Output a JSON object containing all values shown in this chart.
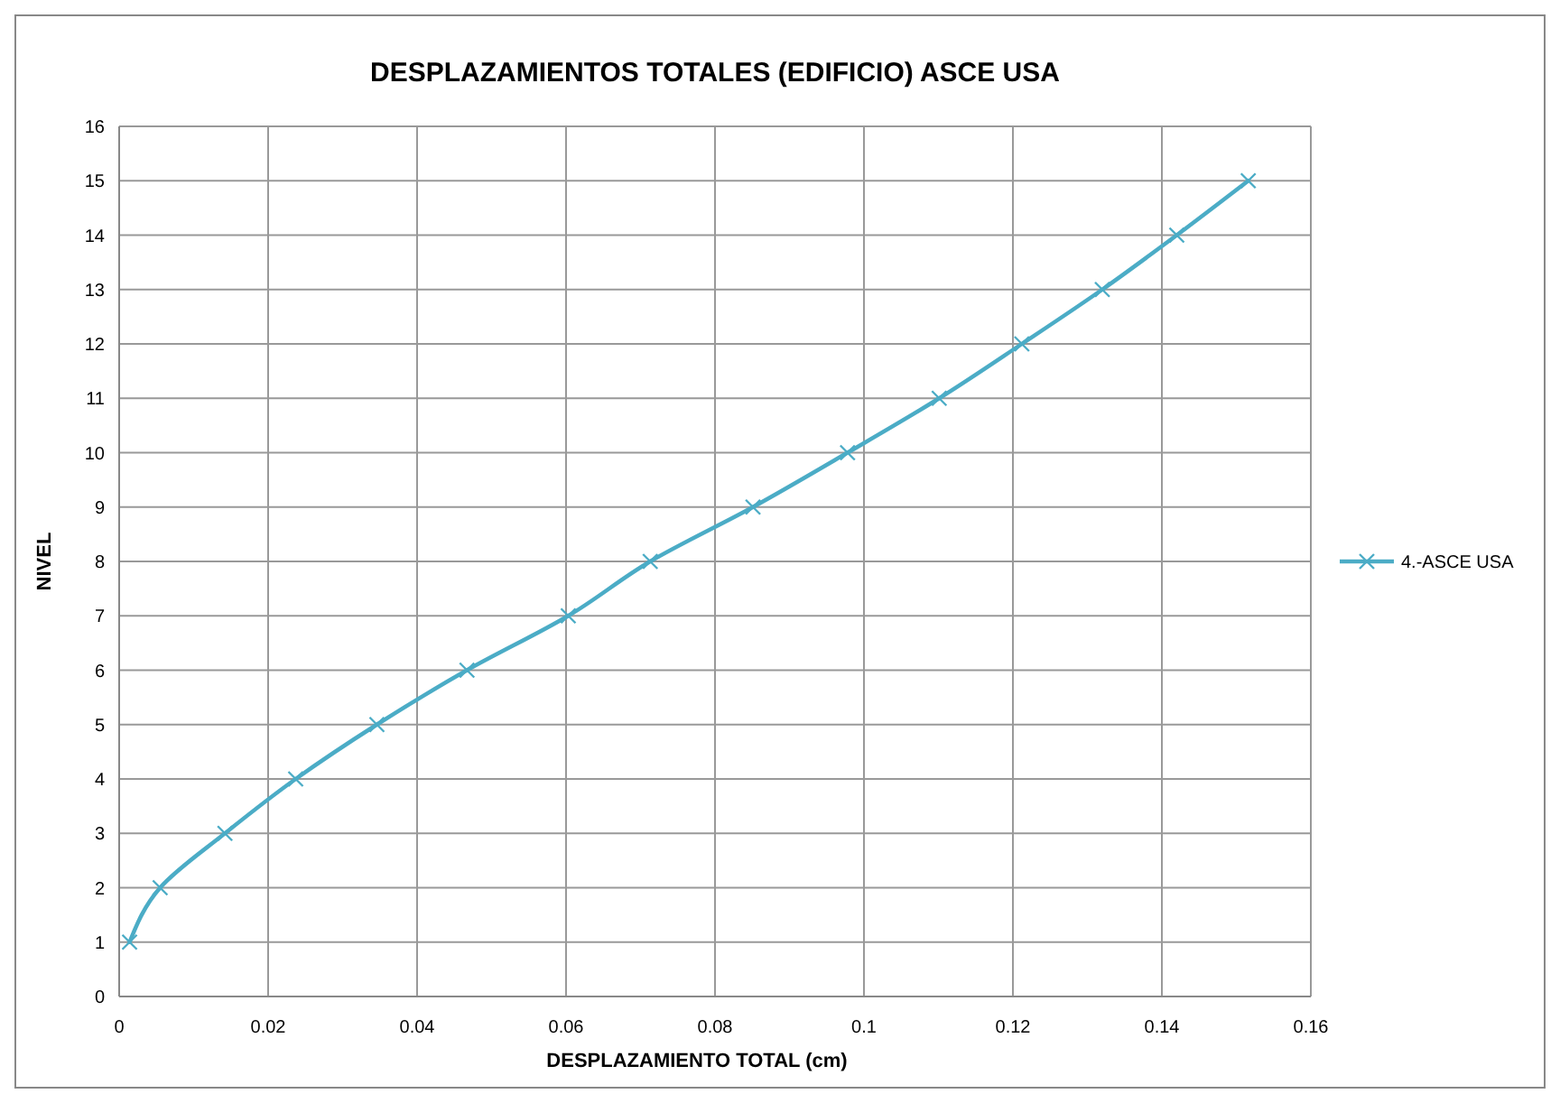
{
  "chart_data": {
    "type": "line",
    "title": "DESPLAZAMIENTOS TOTALES (EDIFICIO) ASCE USA",
    "xlabel": "DESPLAZAMIENTO TOTAL  (cm)",
    "ylabel": "NIVEL",
    "x": [
      0.0014,
      0.0055,
      0.0142,
      0.0237,
      0.0346,
      0.0467,
      0.0603,
      0.0713,
      0.0851,
      0.0978,
      0.1101,
      0.1212,
      0.132,
      0.142,
      0.1516
    ],
    "series": [
      {
        "name": "4.-ASCE USA",
        "color": "#4bacc6",
        "values": [
          1,
          2,
          3,
          4,
          5,
          6,
          7,
          8,
          9,
          10,
          11,
          12,
          13,
          14,
          15
        ]
      }
    ],
    "xlim": [
      0,
      0.16
    ],
    "xticks": [
      0,
      0.02,
      0.04,
      0.06,
      0.08,
      0.1,
      0.12,
      0.14,
      0.16
    ],
    "ylim": [
      0,
      16
    ],
    "yticks": [
      0,
      1,
      2,
      3,
      4,
      5,
      6,
      7,
      8,
      9,
      10,
      11,
      12,
      13,
      14,
      15,
      16
    ],
    "grid": true,
    "legend": "right",
    "marker": "cross",
    "line_style": "solid"
  }
}
